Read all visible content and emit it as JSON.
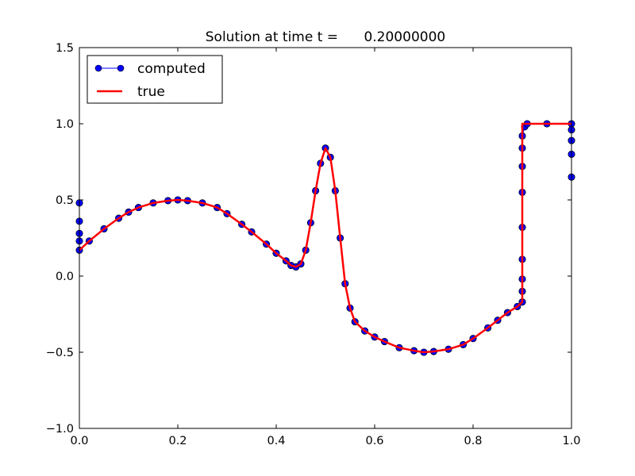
{
  "chart_data": {
    "type": "line",
    "title": "Solution at time t =      0.20000000",
    "xlabel": "",
    "ylabel": "",
    "xlim": [
      0.0,
      1.0
    ],
    "ylim": [
      -1.0,
      1.5
    ],
    "x_ticks": [
      "0.0",
      "0.2",
      "0.4",
      "0.6",
      "0.8",
      "1.0"
    ],
    "y_ticks": [
      "−1.0",
      "−0.5",
      "0.0",
      "0.5",
      "1.0",
      "1.5"
    ],
    "grid": false,
    "legend_position": "top-left",
    "series": [
      {
        "name": "computed",
        "style": "line-with-circle-markers",
        "color": "#0000ff",
        "marker_edge": "#000000",
        "points": [
          [
            0.0,
            0.48
          ],
          [
            0.0,
            0.36
          ],
          [
            0.0,
            0.28
          ],
          [
            0.0,
            0.23
          ],
          [
            0.0,
            0.17
          ],
          [
            0.02,
            0.23
          ],
          [
            0.05,
            0.31
          ],
          [
            0.08,
            0.38
          ],
          [
            0.1,
            0.42
          ],
          [
            0.12,
            0.45
          ],
          [
            0.15,
            0.48
          ],
          [
            0.18,
            0.495
          ],
          [
            0.2,
            0.5
          ],
          [
            0.22,
            0.495
          ],
          [
            0.25,
            0.48
          ],
          [
            0.28,
            0.45
          ],
          [
            0.3,
            0.41
          ],
          [
            0.33,
            0.34
          ],
          [
            0.35,
            0.29
          ],
          [
            0.38,
            0.21
          ],
          [
            0.4,
            0.15
          ],
          [
            0.42,
            0.1
          ],
          [
            0.43,
            0.07
          ],
          [
            0.44,
            0.06
          ],
          [
            0.45,
            0.08
          ],
          [
            0.46,
            0.17
          ],
          [
            0.47,
            0.35
          ],
          [
            0.48,
            0.56
          ],
          [
            0.49,
            0.74
          ],
          [
            0.5,
            0.84
          ],
          [
            0.51,
            0.78
          ],
          [
            0.52,
            0.56
          ],
          [
            0.53,
            0.25
          ],
          [
            0.54,
            -0.05
          ],
          [
            0.55,
            -0.21
          ],
          [
            0.56,
            -0.3
          ],
          [
            0.58,
            -0.36
          ],
          [
            0.6,
            -0.4
          ],
          [
            0.62,
            -0.43
          ],
          [
            0.65,
            -0.47
          ],
          [
            0.68,
            -0.49
          ],
          [
            0.7,
            -0.5
          ],
          [
            0.72,
            -0.495
          ],
          [
            0.75,
            -0.48
          ],
          [
            0.78,
            -0.45
          ],
          [
            0.8,
            -0.41
          ],
          [
            0.83,
            -0.34
          ],
          [
            0.85,
            -0.29
          ],
          [
            0.87,
            -0.24
          ],
          [
            0.89,
            -0.2
          ],
          [
            0.9,
            -0.17
          ],
          [
            0.9,
            -0.1
          ],
          [
            0.9,
            -0.02
          ],
          [
            0.9,
            0.11
          ],
          [
            0.9,
            0.32
          ],
          [
            0.9,
            0.55
          ],
          [
            0.9,
            0.72
          ],
          [
            0.9,
            0.84
          ],
          [
            0.9,
            0.92
          ],
          [
            0.905,
            0.98
          ],
          [
            0.91,
            1.0
          ],
          [
            0.95,
            1.0
          ],
          [
            1.0,
            1.0
          ],
          [
            1.0,
            0.96
          ],
          [
            1.0,
            0.89
          ],
          [
            1.0,
            0.8
          ],
          [
            1.0,
            0.65
          ]
        ]
      },
      {
        "name": "true",
        "style": "line",
        "color": "#ff0000",
        "points": [
          [
            0.0,
            0.17
          ],
          [
            0.02,
            0.23
          ],
          [
            0.05,
            0.31
          ],
          [
            0.08,
            0.38
          ],
          [
            0.1,
            0.42
          ],
          [
            0.12,
            0.45
          ],
          [
            0.15,
            0.48
          ],
          [
            0.18,
            0.495
          ],
          [
            0.2,
            0.5
          ],
          [
            0.22,
            0.495
          ],
          [
            0.25,
            0.48
          ],
          [
            0.28,
            0.45
          ],
          [
            0.3,
            0.41
          ],
          [
            0.33,
            0.34
          ],
          [
            0.35,
            0.29
          ],
          [
            0.38,
            0.21
          ],
          [
            0.4,
            0.15
          ],
          [
            0.42,
            0.1
          ],
          [
            0.43,
            0.07
          ],
          [
            0.44,
            0.06
          ],
          [
            0.45,
            0.08
          ],
          [
            0.46,
            0.17
          ],
          [
            0.47,
            0.35
          ],
          [
            0.48,
            0.56
          ],
          [
            0.49,
            0.74
          ],
          [
            0.5,
            0.84
          ],
          [
            0.51,
            0.78
          ],
          [
            0.52,
            0.56
          ],
          [
            0.53,
            0.25
          ],
          [
            0.54,
            -0.05
          ],
          [
            0.55,
            -0.21
          ],
          [
            0.56,
            -0.3
          ],
          [
            0.58,
            -0.36
          ],
          [
            0.6,
            -0.4
          ],
          [
            0.62,
            -0.43
          ],
          [
            0.65,
            -0.47
          ],
          [
            0.68,
            -0.49
          ],
          [
            0.7,
            -0.5
          ],
          [
            0.72,
            -0.495
          ],
          [
            0.75,
            -0.48
          ],
          [
            0.78,
            -0.45
          ],
          [
            0.8,
            -0.41
          ],
          [
            0.83,
            -0.34
          ],
          [
            0.85,
            -0.29
          ],
          [
            0.87,
            -0.24
          ],
          [
            0.89,
            -0.2
          ],
          [
            0.9,
            -0.17
          ],
          [
            0.9,
            1.0
          ],
          [
            1.0,
            1.0
          ]
        ]
      }
    ]
  }
}
